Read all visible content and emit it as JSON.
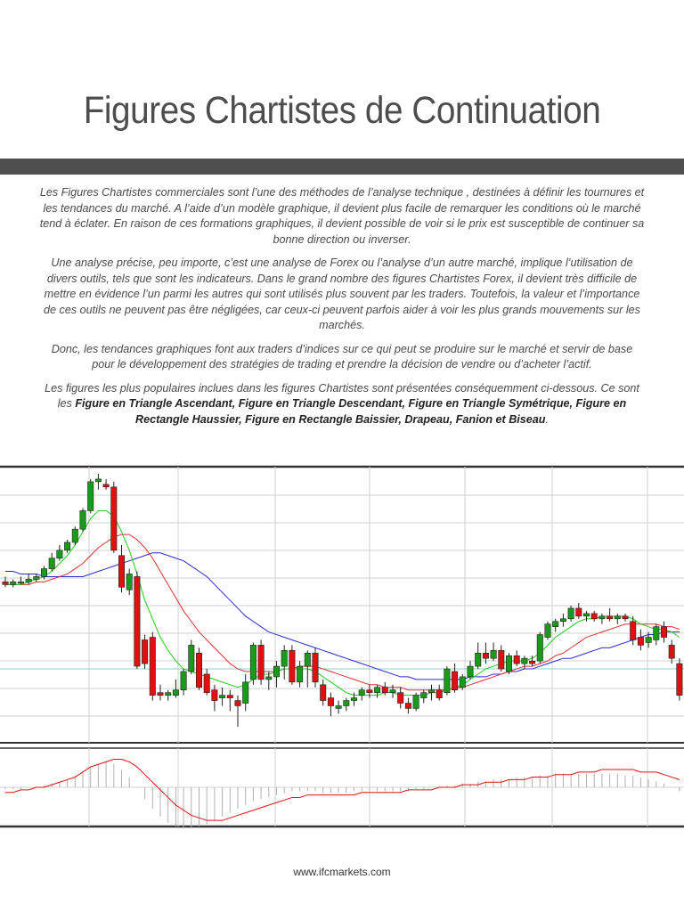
{
  "document": {
    "title": "Figures Chartistes de Continuation",
    "paragraphs": [
      "Les Figures Chartistes commerciales sont l’une des méthodes de l’analyse technique , destinées à définir les tournures et les tendances du marché. A l’aide d’un modèle graphique, il devient plus facile de remarquer les conditions où le marché tend à éclater. En raison de ces formations graphiques, il devient possible de voir si le prix est susceptible de continuer sa bonne direction ou inverser.",
      "Une analyse précise, peu importe, c’est une analyse de Forex ou l’analyse d’un autre marché, implique l’utilisation de divers outils, tels que sont les indicateurs. Dans le grand nombre des figures Chartistes Forex, il devient très difficile de mettre en évidence l’un parmi les autres qui sont utilisés plus souvent par les traders. Toutefois, la valeur et l’importance de ces outils ne peuvent pas être négligées, car ceux-ci peuvent parfois aider à voir les plus grands mouvements sur les marchés.",
      "Donc, les tendances graphiques font aux traders d’indices sur ce qui peut se produire sur le marché et servir de base pour le développement des stratégies de trading et prendre la décision de vendre ou d’acheter l’actif."
    ],
    "popular_intro": "Les figures les plus populaires inclues dans les figures Chartistes sont présentées conséquemment ci-dessous. Ce sont les ",
    "popular_list": "Figure en Triangle Ascendant, Figure en Triangle Descendant, Figure en Triangle Symétrique, Figure en Rectangle Haussier, Figure en Rectangle Baissier, Drapeau, Fanion et Biseau",
    "popular_end": "."
  },
  "footer": {
    "url": "www.ifcmarkets.com"
  },
  "colors": {
    "bull": "#1a9a1a",
    "bear": "#e01010",
    "ma_fast": "#22cc22",
    "ma_mid": "#e03030",
    "ma_slow": "#2a2ad0",
    "hline": "#7fd6d6",
    "grid": "#d0d0d0",
    "frame": "#333333",
    "title_bar": "#4f4f4f"
  },
  "chart_data": {
    "type": "candlestick",
    "price_range": [
      0,
      100
    ],
    "candles": [
      {
        "o": 59,
        "h": 61,
        "l": 57,
        "c": 58
      },
      {
        "o": 58,
        "h": 60,
        "l": 57,
        "c": 59
      },
      {
        "o": 59,
        "h": 61,
        "l": 58,
        "c": 59
      },
      {
        "o": 59,
        "h": 62,
        "l": 58,
        "c": 60
      },
      {
        "o": 60,
        "h": 62,
        "l": 59,
        "c": 61
      },
      {
        "o": 61,
        "h": 65,
        "l": 60,
        "c": 64
      },
      {
        "o": 64,
        "h": 70,
        "l": 63,
        "c": 68
      },
      {
        "o": 68,
        "h": 73,
        "l": 67,
        "c": 71
      },
      {
        "o": 71,
        "h": 75,
        "l": 70,
        "c": 74
      },
      {
        "o": 74,
        "h": 80,
        "l": 73,
        "c": 79
      },
      {
        "o": 79,
        "h": 87,
        "l": 78,
        "c": 86
      },
      {
        "o": 86,
        "h": 98,
        "l": 85,
        "c": 97
      },
      {
        "o": 97,
        "h": 100,
        "l": 94,
        "c": 98
      },
      {
        "o": 96,
        "h": 98,
        "l": 94,
        "c": 95
      },
      {
        "o": 95,
        "h": 97,
        "l": 70,
        "c": 71
      },
      {
        "o": 69,
        "h": 73,
        "l": 55,
        "c": 57
      },
      {
        "o": 56,
        "h": 64,
        "l": 54,
        "c": 62
      },
      {
        "o": 61,
        "h": 63,
        "l": 26,
        "c": 27
      },
      {
        "o": 37,
        "h": 39,
        "l": 26,
        "c": 28
      },
      {
        "o": 38,
        "h": 40,
        "l": 14,
        "c": 16
      },
      {
        "o": 17,
        "h": 20,
        "l": 14,
        "c": 16
      },
      {
        "o": 16,
        "h": 18,
        "l": 14,
        "c": 17
      },
      {
        "o": 16,
        "h": 22,
        "l": 15,
        "c": 18
      },
      {
        "o": 18,
        "h": 26,
        "l": 16,
        "c": 25
      },
      {
        "o": 25,
        "h": 37,
        "l": 24,
        "c": 35
      },
      {
        "o": 32,
        "h": 34,
        "l": 18,
        "c": 19
      },
      {
        "o": 24,
        "h": 26,
        "l": 16,
        "c": 17
      },
      {
        "o": 18,
        "h": 20,
        "l": 10,
        "c": 14
      },
      {
        "o": 15,
        "h": 19,
        "l": 12,
        "c": 16
      },
      {
        "o": 16,
        "h": 18,
        "l": 10,
        "c": 15
      },
      {
        "o": 14,
        "h": 16,
        "l": 4,
        "c": 12
      },
      {
        "o": 13,
        "h": 24,
        "l": 10,
        "c": 21
      },
      {
        "o": 22,
        "h": 36,
        "l": 20,
        "c": 35
      },
      {
        "o": 35,
        "h": 37,
        "l": 20,
        "c": 22
      },
      {
        "o": 22,
        "h": 25,
        "l": 18,
        "c": 23
      },
      {
        "o": 23,
        "h": 29,
        "l": 19,
        "c": 27
      },
      {
        "o": 27,
        "h": 35,
        "l": 22,
        "c": 33
      },
      {
        "o": 33,
        "h": 35,
        "l": 20,
        "c": 21
      },
      {
        "o": 21,
        "h": 29,
        "l": 19,
        "c": 27
      },
      {
        "o": 27,
        "h": 33,
        "l": 19,
        "c": 32
      },
      {
        "o": 32,
        "h": 34,
        "l": 19,
        "c": 21
      },
      {
        "o": 20,
        "h": 22,
        "l": 12,
        "c": 14
      },
      {
        "o": 15,
        "h": 17,
        "l": 8,
        "c": 12
      },
      {
        "o": 11,
        "h": 14,
        "l": 9,
        "c": 12
      },
      {
        "o": 12,
        "h": 15,
        "l": 10,
        "c": 14
      },
      {
        "o": 14,
        "h": 17,
        "l": 12,
        "c": 15
      },
      {
        "o": 16,
        "h": 19,
        "l": 14,
        "c": 18
      },
      {
        "o": 18,
        "h": 20,
        "l": 15,
        "c": 17
      },
      {
        "o": 17,
        "h": 20,
        "l": 15,
        "c": 19
      },
      {
        "o": 19,
        "h": 21,
        "l": 16,
        "c": 17
      },
      {
        "o": 17,
        "h": 20,
        "l": 15,
        "c": 18
      },
      {
        "o": 17,
        "h": 19,
        "l": 11,
        "c": 13
      },
      {
        "o": 13,
        "h": 15,
        "l": 9,
        "c": 11
      },
      {
        "o": 11,
        "h": 17,
        "l": 10,
        "c": 16
      },
      {
        "o": 15,
        "h": 18,
        "l": 13,
        "c": 17
      },
      {
        "o": 17,
        "h": 20,
        "l": 14,
        "c": 18
      },
      {
        "o": 18,
        "h": 20,
        "l": 14,
        "c": 15
      },
      {
        "o": 17,
        "h": 27,
        "l": 16,
        "c": 26
      },
      {
        "o": 25,
        "h": 28,
        "l": 17,
        "c": 18
      },
      {
        "o": 19,
        "h": 24,
        "l": 18,
        "c": 23
      },
      {
        "o": 23,
        "h": 29,
        "l": 22,
        "c": 27
      },
      {
        "o": 27,
        "h": 36,
        "l": 26,
        "c": 32
      },
      {
        "o": 32,
        "h": 36,
        "l": 28,
        "c": 30
      },
      {
        "o": 30,
        "h": 36,
        "l": 29,
        "c": 33
      },
      {
        "o": 33,
        "h": 35,
        "l": 25,
        "c": 26
      },
      {
        "o": 25,
        "h": 32,
        "l": 24,
        "c": 31
      },
      {
        "o": 31,
        "h": 33,
        "l": 27,
        "c": 28
      },
      {
        "o": 28,
        "h": 31,
        "l": 26,
        "c": 30
      },
      {
        "o": 29,
        "h": 31,
        "l": 27,
        "c": 28
      },
      {
        "o": 29,
        "h": 40,
        "l": 28,
        "c": 39
      },
      {
        "o": 38,
        "h": 44,
        "l": 37,
        "c": 43
      },
      {
        "o": 42,
        "h": 45,
        "l": 40,
        "c": 44
      },
      {
        "o": 44,
        "h": 47,
        "l": 42,
        "c": 45
      },
      {
        "o": 45,
        "h": 50,
        "l": 44,
        "c": 49
      },
      {
        "o": 49,
        "h": 51,
        "l": 45,
        "c": 46
      },
      {
        "o": 46,
        "h": 48,
        "l": 44,
        "c": 47
      },
      {
        "o": 47,
        "h": 48,
        "l": 44,
        "c": 45
      },
      {
        "o": 45,
        "h": 47,
        "l": 43,
        "c": 46
      },
      {
        "o": 46,
        "h": 49,
        "l": 44,
        "c": 45
      },
      {
        "o": 45,
        "h": 47,
        "l": 43,
        "c": 46
      },
      {
        "o": 46,
        "h": 47,
        "l": 44,
        "c": 45
      },
      {
        "o": 44,
        "h": 46,
        "l": 35,
        "c": 37
      },
      {
        "o": 38,
        "h": 41,
        "l": 33,
        "c": 35
      },
      {
        "o": 36,
        "h": 40,
        "l": 34,
        "c": 38
      },
      {
        "o": 37,
        "h": 43,
        "l": 35,
        "c": 42
      },
      {
        "o": 42,
        "h": 44,
        "l": 36,
        "c": 38
      },
      {
        "o": 35,
        "h": 37,
        "l": 28,
        "c": 30
      },
      {
        "o": 28,
        "h": 30,
        "l": 14,
        "c": 16
      }
    ],
    "ma_fast": [
      58,
      58,
      58,
      59,
      60,
      61,
      63,
      66,
      69,
      73,
      78,
      83,
      86,
      86,
      84,
      78,
      71,
      62,
      52,
      45,
      38,
      33,
      29,
      26,
      25,
      24,
      23,
      22,
      21,
      20,
      19,
      20,
      22,
      24,
      24,
      25,
      26,
      26,
      26,
      26,
      25,
      23,
      21,
      19,
      17,
      16,
      16,
      16,
      16,
      17,
      17,
      16,
      16,
      16,
      16,
      17,
      17,
      18,
      19,
      20,
      22,
      24,
      26,
      27,
      28,
      29,
      29,
      29,
      30,
      32,
      35,
      38,
      40,
      42,
      44,
      45,
      45,
      46,
      46,
      46,
      46,
      45,
      43,
      42,
      41,
      41,
      40,
      38
    ],
    "ma_mid": [
      58,
      58,
      58,
      58,
      59,
      59,
      60,
      61,
      62,
      64,
      66,
      69,
      72,
      74,
      76,
      77,
      77,
      75,
      72,
      68,
      63,
      58,
      53,
      48,
      44,
      40,
      37,
      34,
      31,
      28,
      26,
      25,
      25,
      25,
      25,
      25,
      26,
      26,
      27,
      27,
      27,
      26,
      25,
      24,
      23,
      22,
      21,
      20,
      20,
      19,
      19,
      19,
      18,
      18,
      18,
      18,
      18,
      18,
      19,
      19,
      20,
      21,
      22,
      23,
      24,
      25,
      26,
      27,
      27,
      28,
      29,
      31,
      32,
      34,
      36,
      38,
      39,
      40,
      41,
      42,
      43,
      43,
      43,
      43,
      43,
      42,
      42,
      41
    ],
    "ma_slow": [
      63,
      63,
      62,
      62,
      62,
      61,
      61,
      61,
      61,
      61,
      61,
      62,
      63,
      64,
      65,
      66,
      67,
      68,
      69,
      70,
      70,
      69,
      68,
      67,
      65,
      63,
      61,
      58,
      55,
      52,
      49,
      46,
      44,
      42,
      40,
      39,
      38,
      37,
      36,
      35,
      34,
      33,
      32,
      31,
      30,
      29,
      28,
      27,
      26,
      25,
      24,
      23,
      23,
      22,
      22,
      22,
      22,
      22,
      22,
      22,
      23,
      23,
      23,
      24,
      24,
      25,
      25,
      26,
      26,
      27,
      28,
      29,
      30,
      30,
      31,
      32,
      33,
      34,
      34,
      35,
      36,
      37,
      38,
      39,
      39,
      40,
      40,
      40
    ],
    "hline": 26,
    "indicator": {
      "signal": [
        -2,
        -2,
        -1,
        -1,
        0,
        0,
        1,
        2,
        3,
        4,
        6,
        8,
        9,
        10,
        11,
        11,
        10,
        8,
        5,
        2,
        -1,
        -4,
        -7,
        -9,
        -11,
        -12,
        -13,
        -13,
        -13,
        -12,
        -11,
        -10,
        -9,
        -8,
        -7,
        -6,
        -5,
        -4,
        -4,
        -3,
        -3,
        -3,
        -3,
        -3,
        -3,
        -3,
        -2,
        -2,
        -2,
        -2,
        -2,
        -2,
        -1,
        -1,
        -1,
        -1,
        0,
        0,
        0,
        1,
        1,
        1,
        2,
        2,
        2,
        3,
        3,
        3,
        4,
        4,
        4,
        5,
        5,
        5,
        6,
        6,
        6,
        7,
        7,
        7,
        7,
        7,
        6,
        6,
        6,
        5,
        4,
        3
      ],
      "histogram": [
        -1,
        -1,
        -1,
        0,
        0,
        1,
        2,
        3,
        4,
        6,
        8,
        10,
        12,
        13,
        12,
        9,
        5,
        0,
        -6,
        -11,
        -15,
        -18,
        -20,
        -21,
        -21,
        -20,
        -19,
        -17,
        -15,
        -13,
        -11,
        -9,
        -7,
        -6,
        -5,
        -4,
        -3,
        -2,
        -2,
        -2,
        -2,
        -3,
        -3,
        -3,
        -3,
        -2,
        -2,
        -2,
        -2,
        -2,
        -2,
        -2,
        -2,
        -1,
        -1,
        0,
        0,
        1,
        1,
        2,
        2,
        3,
        3,
        4,
        4,
        4,
        5,
        5,
        5,
        6,
        6,
        7,
        7,
        7,
        7,
        7,
        7,
        7,
        7,
        7,
        6,
        6,
        5,
        4,
        3,
        2,
        0,
        -2
      ]
    }
  }
}
